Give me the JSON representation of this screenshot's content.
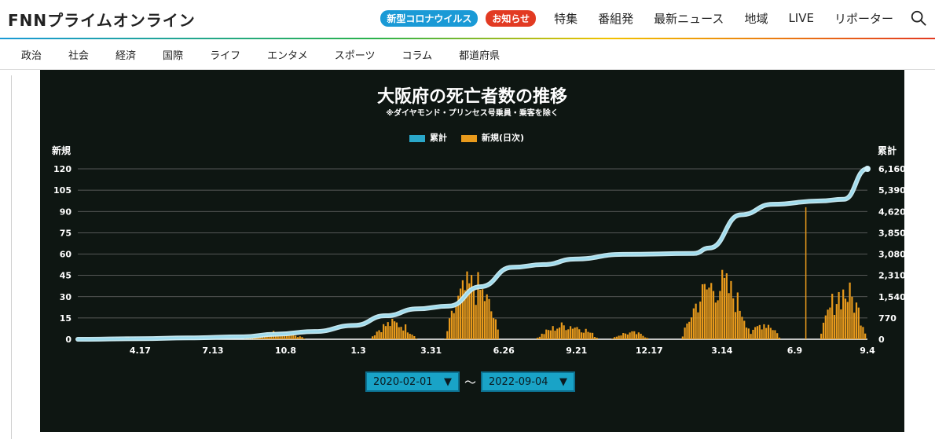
{
  "site": {
    "logo": "FNNプライムオンライン",
    "pill_covid": "新型コロナウイルス",
    "pill_news": "お知らせ",
    "nav": [
      "特集",
      "番組発",
      "最新ニュース",
      "地域",
      "LIVE",
      "リポーター"
    ],
    "subnav": [
      "政治",
      "社会",
      "経済",
      "国際",
      "ライフ",
      "エンタメ",
      "スポーツ",
      "コラム",
      "都道府県"
    ]
  },
  "chart_data": {
    "type": "bar+line",
    "title": "大阪府の死亡者数の推移",
    "subtitle": "※ダイヤモンド・プリンセス号乗員・乗客を除く",
    "left_axis_label": "新規",
    "right_axis_label": "累計",
    "left_ticks": [
      0,
      15,
      30,
      45,
      60,
      75,
      90,
      105,
      120
    ],
    "right_ticks": [
      "0",
      "770",
      "1,540",
      "2,310",
      "3,080",
      "3,850",
      "4,620",
      "5,390",
      "6,160"
    ],
    "x_ticks": [
      "4.17",
      "7.13",
      "10.8",
      "1.3",
      "3.31",
      "6.26",
      "9.21",
      "12.17",
      "3.14",
      "6.9",
      "9.4"
    ],
    "ylim_left": [
      0,
      120
    ],
    "ylim_right": [
      0,
      6160
    ],
    "legend": [
      {
        "label": "累計",
        "color": "#2aa7c9"
      },
      {
        "label": "新規(日次)",
        "color": "#e89a1c"
      }
    ],
    "cumulative_curve": {
      "points": [
        [
          0,
          0
        ],
        [
          0.08,
          20
        ],
        [
          0.14,
          50
        ],
        [
          0.21,
          90
        ],
        [
          0.25,
          180
        ],
        [
          0.3,
          280
        ],
        [
          0.35,
          500
        ],
        [
          0.39,
          850
        ],
        [
          0.43,
          1100
        ],
        [
          0.47,
          1200
        ],
        [
          0.51,
          1900
        ],
        [
          0.55,
          2600
        ],
        [
          0.59,
          2700
        ],
        [
          0.63,
          2900
        ],
        [
          0.69,
          3070
        ],
        [
          0.78,
          3100
        ],
        [
          0.8,
          3300
        ],
        [
          0.84,
          4500
        ],
        [
          0.88,
          4880
        ],
        [
          0.94,
          5000
        ],
        [
          0.97,
          5060
        ],
        [
          1.0,
          6160
        ]
      ],
      "color": "#9fdcee"
    },
    "daily_clusters": [
      {
        "center": 0.06,
        "width": 0.06,
        "peak": 2
      },
      {
        "center": 0.25,
        "width": 0.08,
        "peak": 6
      },
      {
        "center": 0.4,
        "width": 0.06,
        "peak": 15
      },
      {
        "center": 0.5,
        "width": 0.07,
        "peak": 50
      },
      {
        "center": 0.62,
        "width": 0.08,
        "peak": 13
      },
      {
        "center": 0.7,
        "width": 0.05,
        "peak": 6
      },
      {
        "center": 0.81,
        "width": 0.09,
        "peak": 52
      },
      {
        "center": 0.87,
        "width": 0.04,
        "peak": 15
      },
      {
        "center": 0.97,
        "width": 0.06,
        "peak": 44
      }
    ],
    "spike": {
      "x": 0.922,
      "value": 93
    },
    "bar_color": "#e89a1c"
  },
  "date_range": {
    "start": "2020-02-01",
    "end": "2022-09-04",
    "separator": "〜"
  }
}
